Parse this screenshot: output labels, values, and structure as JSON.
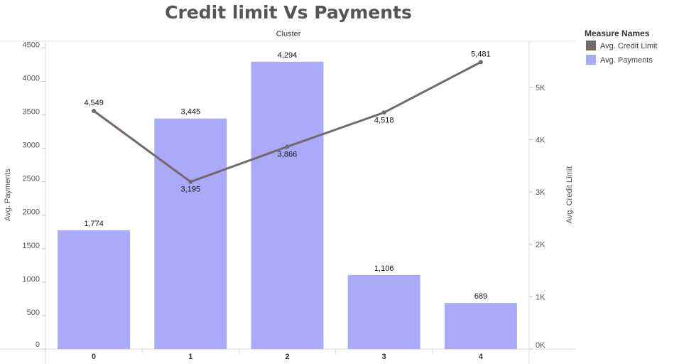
{
  "chart_data": {
    "type": "bar",
    "title": "Credit limit Vs  Payments",
    "subtitle": "Cluster",
    "categories": [
      "0",
      "1",
      "2",
      "3",
      "4"
    ],
    "series": [
      {
        "name": "Avg. Payments",
        "type": "bar",
        "axis": "left",
        "color": "#a9aaf9",
        "values": [
          1774,
          3445,
          4294,
          1106,
          689
        ],
        "labels": [
          "1,774",
          "3,445",
          "4,294",
          "1,106",
          "689"
        ]
      },
      {
        "name": "Avg. Credit Limit",
        "type": "line",
        "axis": "right",
        "color": "#736a68",
        "values": [
          4549,
          3195,
          3866,
          4518,
          5481
        ],
        "labels": [
          "4,549",
          "3,195",
          "3,866",
          "4,518",
          "5,481"
        ]
      }
    ],
    "ylabel": "Avg. Payments",
    "y2label": "Avg. Credit Limit",
    "ylim": [
      0,
      4600
    ],
    "y2lim": [
      0,
      5880
    ],
    "yticks": [
      0,
      500,
      1000,
      1500,
      2000,
      2500,
      3000,
      3500,
      4000,
      4500
    ],
    "yticklabels": [
      "0",
      "500",
      "1000",
      "1500",
      "2000",
      "2500",
      "3000",
      "3500",
      "4000",
      "4500"
    ],
    "y2ticks": [
      0,
      1000,
      2000,
      3000,
      4000,
      5000
    ],
    "y2ticklabels": [
      "0K",
      "1K",
      "2K",
      "3K",
      "4K",
      "5K"
    ],
    "grid": false,
    "legend": {
      "title": "Measure Names",
      "placement": "top-right",
      "items": [
        {
          "label": "Avg. Credit Limit",
          "color": "#736a68"
        },
        {
          "label": "Avg. Payments",
          "color": "#a9aaf9"
        }
      ]
    }
  }
}
